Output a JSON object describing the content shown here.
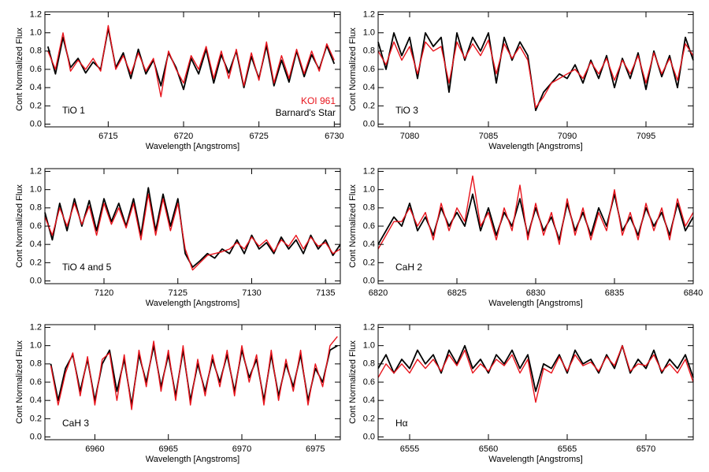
{
  "chart_data": [
    {
      "type": "line",
      "xlabel": "Wavelength [Angstroms]",
      "ylabel": "Cont Normalized Flux",
      "annotation": "TiO 1",
      "legend": "lower right",
      "xlim": [
        6710.8,
        6730.4
      ],
      "xticks": [
        6715,
        6720,
        6725,
        6730
      ],
      "ylim": [
        -0.03,
        1.23
      ],
      "yticks": [
        {
          "value": 0,
          "label": "0.0"
        },
        0.2,
        0.4,
        0.6,
        0.8,
        {
          "value": 1,
          "label": "1.0"
        },
        1.2
      ],
      "x": [
        6711,
        6711.5,
        6712,
        6712.5,
        6713,
        6713.5,
        6714,
        6714.5,
        6715,
        6715.5,
        6716,
        6716.5,
        6717,
        6717.5,
        6718,
        6718.5,
        6719,
        6719.5,
        6720,
        6720.5,
        6721,
        6721.5,
        6722,
        6722.5,
        6723,
        6723.5,
        6724,
        6724.5,
        6725,
        6725.5,
        6726,
        6726.5,
        6727,
        6727.5,
        6728,
        6728.5,
        6729,
        6729.5,
        6730
      ],
      "series": [
        {
          "name": "KOI 961",
          "color": "#e8141c",
          "values": [
            0.8,
            0.6,
            1.0,
            0.58,
            0.7,
            0.6,
            0.72,
            0.58,
            1.08,
            0.6,
            0.75,
            0.55,
            0.78,
            0.58,
            0.72,
            0.3,
            0.8,
            0.6,
            0.45,
            0.75,
            0.6,
            0.85,
            0.5,
            0.8,
            0.5,
            0.82,
            0.42,
            0.78,
            0.48,
            0.9,
            0.45,
            0.75,
            0.5,
            0.82,
            0.55,
            0.8,
            0.58,
            0.88,
            0.7
          ]
        },
        {
          "name": "Barnard's Star",
          "color": "#000000",
          "values": [
            0.85,
            0.55,
            0.95,
            0.62,
            0.72,
            0.56,
            0.68,
            0.6,
            1.05,
            0.62,
            0.78,
            0.5,
            0.82,
            0.55,
            0.7,
            0.42,
            0.78,
            0.62,
            0.38,
            0.72,
            0.55,
            0.82,
            0.45,
            0.76,
            0.56,
            0.8,
            0.4,
            0.74,
            0.5,
            0.86,
            0.42,
            0.7,
            0.46,
            0.8,
            0.52,
            0.76,
            0.6,
            0.86,
            0.66
          ]
        }
      ]
    },
    {
      "type": "line",
      "xlabel": "Wavelength [Angstroms]",
      "ylabel": "Cont Normalized Flux",
      "annotation": "TiO 3",
      "xlim": [
        7078,
        7098
      ],
      "xticks": [
        7080,
        7085,
        7090,
        7095
      ],
      "ylim": [
        -0.03,
        1.23
      ],
      "yticks": [
        {
          "value": 0,
          "label": "0.0"
        },
        0.2,
        0.4,
        0.6,
        0.8,
        {
          "value": 1,
          "label": "1.0"
        },
        1.2
      ],
      "x": [
        7078,
        7078.5,
        7079,
        7079.5,
        7080,
        7080.5,
        7081,
        7081.5,
        7082,
        7082.5,
        7083,
        7083.5,
        7084,
        7084.5,
        7085,
        7085.5,
        7086,
        7086.5,
        7087,
        7087.5,
        7088,
        7088.5,
        7089,
        7089.5,
        7090,
        7090.5,
        7091,
        7091.5,
        7092,
        7092.5,
        7093,
        7093.5,
        7094,
        7094.5,
        7095,
        7095.5,
        7096,
        7096.5,
        7097,
        7097.5,
        7098
      ],
      "series": [
        {
          "color": "#e8141c",
          "values": [
            0.8,
            0.65,
            0.9,
            0.7,
            0.85,
            0.55,
            0.9,
            0.8,
            0.85,
            0.45,
            0.9,
            0.72,
            0.88,
            0.75,
            0.92,
            0.55,
            0.88,
            0.72,
            0.85,
            0.7,
            0.18,
            0.3,
            0.45,
            0.5,
            0.55,
            0.6,
            0.5,
            0.68,
            0.55,
            0.72,
            0.48,
            0.7,
            0.55,
            0.75,
            0.45,
            0.78,
            0.55,
            0.72,
            0.48,
            0.88,
            0.75
          ]
        },
        {
          "color": "#000000",
          "values": [
            0.9,
            0.6,
            1.0,
            0.75,
            0.95,
            0.5,
            1.0,
            0.85,
            0.95,
            0.35,
            1.0,
            0.7,
            0.95,
            0.8,
            1.0,
            0.45,
            0.95,
            0.7,
            0.9,
            0.75,
            0.15,
            0.35,
            0.45,
            0.55,
            0.5,
            0.65,
            0.45,
            0.7,
            0.5,
            0.75,
            0.4,
            0.72,
            0.5,
            0.78,
            0.38,
            0.8,
            0.52,
            0.75,
            0.4,
            0.95,
            0.7
          ]
        }
      ]
    },
    {
      "type": "line",
      "xlabel": "Wavelength [Angstroms]",
      "ylabel": "Cont Normalized Flux",
      "annotation": "TiO 4 and 5",
      "xlim": [
        7116,
        7136
      ],
      "xticks": [
        7120,
        7125,
        7130,
        7135
      ],
      "ylim": [
        -0.03,
        1.23
      ],
      "yticks": [
        {
          "value": 0,
          "label": "0.0"
        },
        0.2,
        0.4,
        0.6,
        0.8,
        {
          "value": 1,
          "label": "1.0"
        },
        1.2
      ],
      "x": [
        7116,
        7116.5,
        7117,
        7117.5,
        7118,
        7118.5,
        7119,
        7119.5,
        7120,
        7120.5,
        7121,
        7121.5,
        7122,
        7122.5,
        7123,
        7123.5,
        7124,
        7124.5,
        7125,
        7125.5,
        7126,
        7126.5,
        7127,
        7127.5,
        7128,
        7128.5,
        7129,
        7129.5,
        7130,
        7130.5,
        7131,
        7131.5,
        7132,
        7132.5,
        7133,
        7133.5,
        7134,
        7134.5,
        7135,
        7135.5,
        7136
      ],
      "series": [
        {
          "color": "#e8141c",
          "values": [
            0.7,
            0.5,
            0.8,
            0.6,
            0.85,
            0.62,
            0.82,
            0.5,
            0.85,
            0.62,
            0.8,
            0.58,
            0.85,
            0.45,
            0.95,
            0.5,
            0.9,
            0.55,
            0.85,
            0.35,
            0.12,
            0.2,
            0.28,
            0.3,
            0.32,
            0.35,
            0.42,
            0.35,
            0.48,
            0.38,
            0.45,
            0.32,
            0.45,
            0.38,
            0.5,
            0.35,
            0.48,
            0.38,
            0.42,
            0.3,
            0.35
          ]
        },
        {
          "color": "#000000",
          "values": [
            0.75,
            0.45,
            0.85,
            0.55,
            0.9,
            0.6,
            0.88,
            0.55,
            0.9,
            0.65,
            0.85,
            0.6,
            0.9,
            0.5,
            1.02,
            0.55,
            0.95,
            0.6,
            0.9,
            0.3,
            0.15,
            0.22,
            0.3,
            0.25,
            0.35,
            0.3,
            0.45,
            0.3,
            0.5,
            0.35,
            0.42,
            0.3,
            0.48,
            0.35,
            0.45,
            0.3,
            0.5,
            0.35,
            0.45,
            0.28,
            0.4
          ]
        }
      ]
    },
    {
      "type": "line",
      "xlabel": "Wavelength [Angstroms]",
      "ylabel": "Cont Normalized Flux",
      "annotation": "CaH 2",
      "xlim": [
        6820,
        6840
      ],
      "xticks": [
        6820,
        6825,
        6830,
        6835,
        6840
      ],
      "ylim": [
        -0.03,
        1.23
      ],
      "yticks": [
        {
          "value": 0,
          "label": "0.0"
        },
        0.2,
        0.4,
        0.6,
        0.8,
        {
          "value": 1,
          "label": "1.0"
        },
        1.2
      ],
      "x": [
        6820,
        6820.5,
        6821,
        6821.5,
        6822,
        6822.5,
        6823,
        6823.5,
        6824,
        6824.5,
        6825,
        6825.5,
        6826,
        6826.5,
        6827,
        6827.5,
        6828,
        6828.5,
        6829,
        6829.5,
        6830,
        6830.5,
        6831,
        6831.5,
        6832,
        6832.5,
        6833,
        6833.5,
        6834,
        6834.5,
        6835,
        6835.5,
        6836,
        6836.5,
        6837,
        6837.5,
        6838,
        6838.5,
        6839,
        6839.5,
        6840
      ],
      "series": [
        {
          "color": "#e8141c",
          "values": [
            0.35,
            0.5,
            0.65,
            0.65,
            0.8,
            0.6,
            0.75,
            0.45,
            0.85,
            0.55,
            0.8,
            0.65,
            1.15,
            0.6,
            0.75,
            0.45,
            0.8,
            0.55,
            1.05,
            0.45,
            0.85,
            0.5,
            0.75,
            0.4,
            0.9,
            0.5,
            0.8,
            0.45,
            0.75,
            0.55,
            1.0,
            0.5,
            0.75,
            0.45,
            0.85,
            0.55,
            0.8,
            0.45,
            0.9,
            0.6,
            0.75
          ]
        },
        {
          "color": "#000000",
          "values": [
            0.4,
            0.55,
            0.7,
            0.6,
            0.85,
            0.55,
            0.7,
            0.5,
            0.8,
            0.6,
            0.75,
            0.6,
            0.95,
            0.55,
            0.8,
            0.5,
            0.75,
            0.6,
            0.9,
            0.5,
            0.8,
            0.55,
            0.7,
            0.45,
            0.85,
            0.55,
            0.75,
            0.5,
            0.8,
            0.6,
            0.95,
            0.55,
            0.7,
            0.5,
            0.8,
            0.6,
            0.75,
            0.5,
            0.85,
            0.55,
            0.7
          ]
        }
      ]
    },
    {
      "type": "line",
      "xlabel": "Wavelength [Angstroms]",
      "ylabel": "Cont Normalized Flux",
      "annotation": "CaH 3",
      "xlim": [
        6956.6,
        6976.7
      ],
      "xticks": [
        6960,
        6965,
        6970,
        6975
      ],
      "ylim": [
        -0.03,
        1.23
      ],
      "yticks": [
        {
          "value": 0,
          "label": "0.0"
        },
        0.2,
        0.4,
        0.6,
        0.8,
        {
          "value": 1,
          "label": "1.0"
        },
        1.2
      ],
      "x": [
        6957,
        6957.5,
        6958,
        6958.5,
        6959,
        6959.5,
        6960,
        6960.5,
        6961,
        6961.5,
        6962,
        6962.5,
        6963,
        6963.5,
        6964,
        6964.5,
        6965,
        6965.5,
        6966,
        6966.5,
        6967,
        6967.5,
        6968,
        6968.5,
        6969,
        6969.5,
        6970,
        6970.5,
        6971,
        6971.5,
        6972,
        6972.5,
        6973,
        6973.5,
        6974,
        6974.5,
        6975,
        6975.5,
        6976,
        6976.5
      ],
      "series": [
        {
          "color": "#e8141c",
          "values": [
            0.78,
            0.35,
            0.7,
            0.92,
            0.45,
            0.88,
            0.35,
            0.85,
            0.92,
            0.4,
            0.9,
            0.3,
            0.95,
            0.55,
            1.05,
            0.5,
            0.95,
            0.4,
            1.0,
            0.35,
            0.85,
            0.45,
            0.9,
            0.55,
            0.95,
            0.45,
            1.0,
            0.6,
            0.9,
            0.35,
            0.95,
            0.4,
            0.85,
            0.5,
            0.95,
            0.35,
            0.8,
            0.55,
            1.0,
            1.1
          ]
        },
        {
          "color": "#000000",
          "values": [
            0.8,
            0.4,
            0.75,
            0.9,
            0.5,
            0.85,
            0.4,
            0.8,
            0.95,
            0.5,
            0.85,
            0.35,
            0.9,
            0.6,
            1.0,
            0.55,
            0.9,
            0.45,
            0.95,
            0.4,
            0.8,
            0.5,
            0.85,
            0.6,
            0.9,
            0.5,
            0.95,
            0.65,
            0.85,
            0.4,
            0.9,
            0.45,
            0.8,
            0.55,
            0.9,
            0.4,
            0.75,
            0.6,
            0.95,
            1.0
          ]
        }
      ]
    },
    {
      "type": "line",
      "xlabel": "Wavelength [Angstroms]",
      "ylabel": "Cont Normalized Flux",
      "annotation": "Hα",
      "xlim": [
        6553,
        6573
      ],
      "xticks": [
        6555,
        6560,
        6565,
        6570
      ],
      "ylim": [
        -0.03,
        1.23
      ],
      "yticks": [
        {
          "value": 0,
          "label": "0.0"
        },
        0.2,
        0.4,
        0.6,
        0.8,
        {
          "value": 1,
          "label": "1.0"
        },
        1.2
      ],
      "x": [
        6553,
        6553.5,
        6554,
        6554.5,
        6555,
        6555.5,
        6556,
        6556.5,
        6557,
        6557.5,
        6558,
        6558.5,
        6559,
        6559.5,
        6560,
        6560.5,
        6561,
        6561.5,
        6562,
        6562.5,
        6563,
        6563.5,
        6564,
        6564.5,
        6565,
        6565.5,
        6566,
        6566.5,
        6567,
        6567.5,
        6568,
        6568.5,
        6569,
        6569.5,
        6570,
        6570.5,
        6571,
        6571.5,
        6572,
        6572.5,
        6573
      ],
      "series": [
        {
          "color": "#e8141c",
          "values": [
            0.65,
            0.8,
            0.7,
            0.8,
            0.7,
            0.85,
            0.75,
            0.85,
            0.72,
            0.9,
            0.78,
            0.95,
            0.7,
            0.8,
            0.72,
            0.85,
            0.78,
            0.9,
            0.7,
            0.85,
            0.38,
            0.75,
            0.7,
            0.88,
            0.72,
            0.9,
            0.78,
            0.82,
            0.72,
            0.88,
            0.78,
            1.0,
            0.72,
            0.8,
            0.78,
            0.9,
            0.72,
            0.8,
            0.7,
            0.85,
            0.6
          ]
        },
        {
          "color": "#000000",
          "values": [
            0.75,
            0.9,
            0.7,
            0.85,
            0.75,
            0.95,
            0.8,
            0.9,
            0.7,
            0.95,
            0.8,
            1.0,
            0.75,
            0.85,
            0.7,
            0.9,
            0.8,
            0.95,
            0.75,
            0.9,
            0.5,
            0.8,
            0.75,
            0.9,
            0.7,
            0.95,
            0.8,
            0.85,
            0.7,
            0.9,
            0.75,
            1.0,
            0.7,
            0.85,
            0.75,
            0.95,
            0.7,
            0.85,
            0.75,
            0.9,
            0.65
          ]
        }
      ]
    }
  ]
}
